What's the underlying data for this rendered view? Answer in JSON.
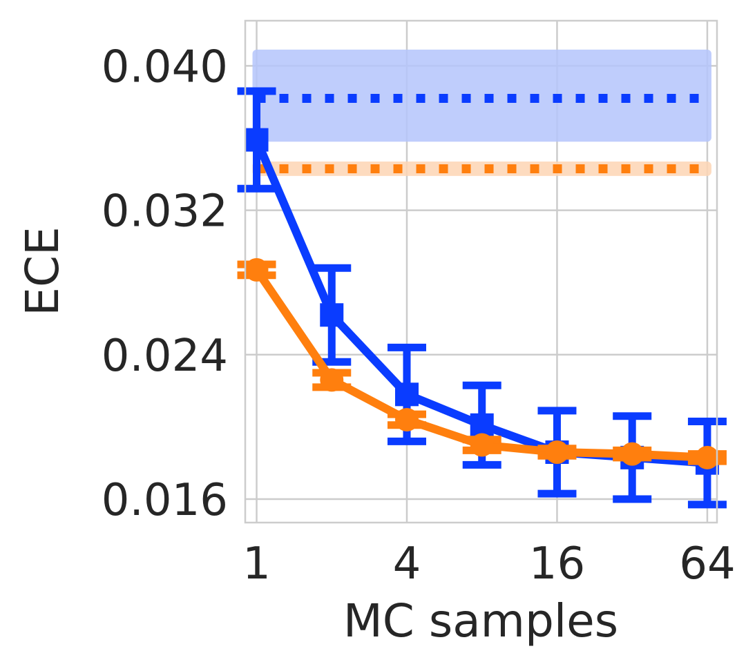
{
  "chart_data": {
    "type": "line",
    "title": "",
    "xlabel": "MC samples",
    "ylabel": "ECE",
    "x_scale": "log2",
    "x": [
      1,
      2,
      4,
      8,
      16,
      32,
      64
    ],
    "x_ticks": [
      1,
      4,
      16,
      64
    ],
    "x_tick_labels": [
      "1",
      "4",
      "16",
      "64"
    ],
    "y_ticks": [
      0.016,
      0.024,
      0.032,
      0.04
    ],
    "y_tick_labels": [
      "0.016",
      "0.024",
      "0.032",
      "0.040"
    ],
    "xlim": [
      0.9,
      70
    ],
    "ylim": [
      0.0147,
      0.0425
    ],
    "grid": true,
    "legend": "none",
    "series": [
      {
        "name": "blue",
        "color": "#0a3cff",
        "marker": "square",
        "values": [
          0.0359,
          0.0262,
          0.0218,
          0.0201,
          0.0186,
          0.0183,
          0.018
        ],
        "errors": [
          0.0027,
          0.0026,
          0.0026,
          0.0022,
          0.0023,
          0.0023,
          0.0023
        ]
      },
      {
        "name": "orange",
        "color": "#ff7f0e",
        "marker": "circle",
        "values": [
          0.0287,
          0.0226,
          0.0204,
          0.019,
          0.0186,
          0.0185,
          0.0183
        ],
        "errors": [
          0.0003,
          0.0004,
          0.0003,
          0.0003,
          0.0002,
          0.0002,
          0.0002
        ]
      }
    ],
    "baselines": [
      {
        "name": "blue-baseline",
        "color": "#0a3cff",
        "band_color": "#b4c4fb",
        "value": 0.0382,
        "band": [
          0.0358,
          0.0409
        ]
      },
      {
        "name": "orange-baseline",
        "color": "#ff7f0e",
        "band_color": "#fdd5b4",
        "value": 0.0343,
        "band": [
          0.0339,
          0.0347
        ]
      }
    ]
  }
}
